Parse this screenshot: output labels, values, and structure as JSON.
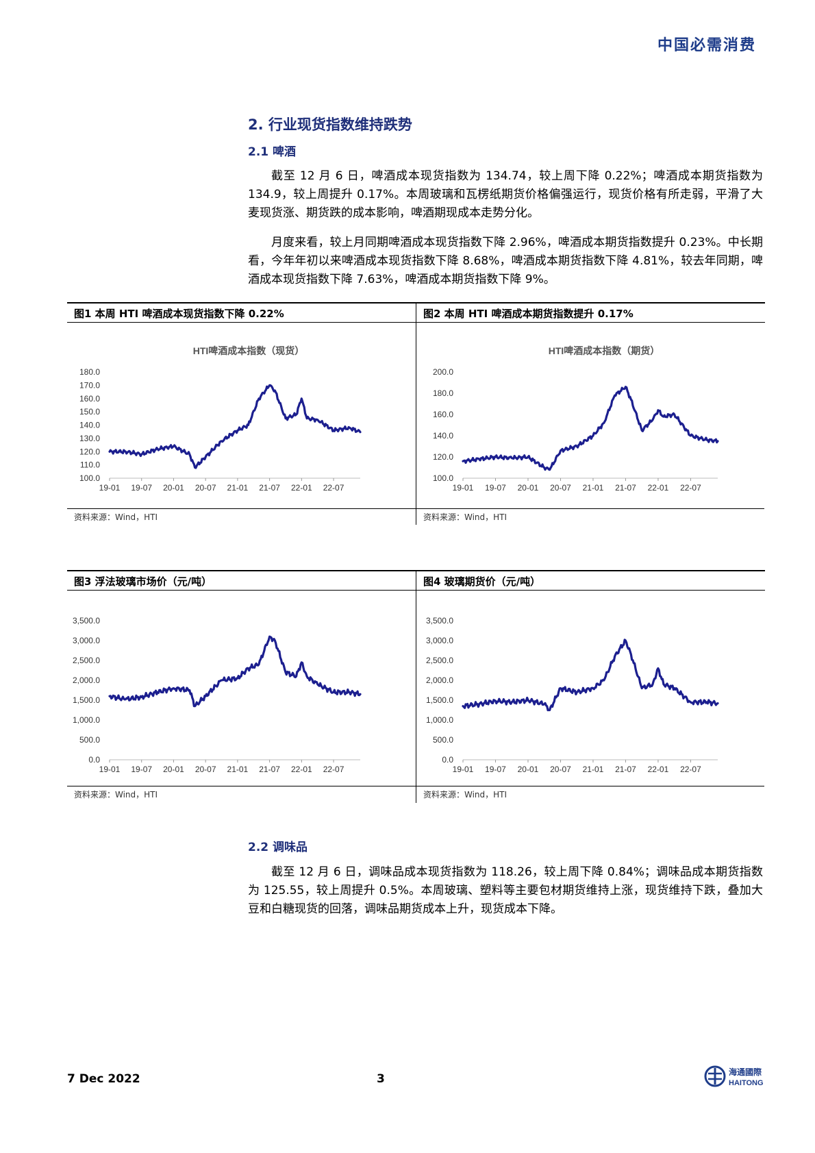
{
  "header": {
    "brand": "中国必需消费"
  },
  "section": {
    "title": "2.   行业现货指数维持跌势"
  },
  "sub1": {
    "title": "2.1   啤酒"
  },
  "para1": [
    "截至 12 月 6 日，啤酒成本现货指数为 134.74，较上周下降 0.22%；啤酒成本期货指数为 134.9，较上周提升 0.17%。本周玻璃和瓦楞纸期货价格偏强运行，现货价格有所走弱，平滑了大麦现货涨、期货跌的成本影响，啤酒期现成本走势分化。",
    "月度来看，较上月同期啤酒成本现货指数下降 2.96%，啤酒成本期货指数提升 0.23%。中长期看，今年年初以来啤酒成本现货指数下降 8.68%，啤酒成本期货指数下降 4.81%，较去年同期，啤酒成本现货指数下降 7.63%，啤酒成本期货指数下降 9%。"
  ],
  "figures": [
    {
      "caption": "图1   本周 HTI 啤酒成本现货指数下降 0.22%",
      "source": "资料来源：Wind，HTI"
    },
    {
      "caption": "图2   本周 HTI 啤酒成本期货指数提升 0.17%",
      "source": "资料来源：Wind，HTI"
    },
    {
      "caption": "图3   浮法玻璃市场价（元/吨）",
      "source": "资料来源：Wind，HTI"
    },
    {
      "caption": "图4   玻璃期货价（元/吨）",
      "source": "资料来源：Wind，HTI"
    }
  ],
  "sub2": {
    "title": "2.2   调味品"
  },
  "para2": [
    "截至 12 月 6 日，调味品成本现货指数为 118.26，较上周下降 0.84%；调味品成本期货指数为 125.55，较上周提升 0.5%。本周玻璃、塑料等主要包材期货维持上涨，现货维持下跌，叠加大豆和白糖现货的回落，调味品期货成本上升，现货成本下降。"
  ],
  "footer": {
    "date": "7 Dec 2022",
    "page": "3",
    "logo_cn": "海通國際",
    "logo_en": "HAITONG"
  },
  "colors": {
    "line": "#1c1f8f",
    "brand": "#1f3d8a"
  },
  "chart_data": [
    {
      "type": "line",
      "title": "HTI啤酒成本指数（现货）",
      "x": [
        "19-01",
        "19-04",
        "19-07",
        "19-10",
        "20-01",
        "20-04",
        "20-05",
        "20-07",
        "20-10",
        "21-01",
        "21-03",
        "21-05",
        "21-07",
        "21-08",
        "21-10",
        "21-12",
        "22-01",
        "22-02",
        "22-04",
        "22-07",
        "22-10",
        "22-12"
      ],
      "series": [
        {
          "values": [
            120,
            120,
            118,
            122,
            124,
            118,
            108,
            116,
            128,
            136,
            140,
            160,
            170,
            166,
            145,
            148,
            160,
            145,
            144,
            136,
            138,
            134.74
          ]
        }
      ],
      "xticks": [
        "19-01",
        "19-07",
        "20-01",
        "20-07",
        "21-01",
        "21-07",
        "22-01",
        "22-07"
      ],
      "yticks": [
        "100.0",
        "110.0",
        "120.0",
        "130.0",
        "140.0",
        "150.0",
        "160.0",
        "170.0",
        "180.0"
      ],
      "ylim": [
        100,
        180
      ]
    },
    {
      "type": "line",
      "title": "HTI啤酒成本指数（期货）",
      "x": [
        "19-01",
        "19-04",
        "19-07",
        "19-10",
        "20-01",
        "20-04",
        "20-05",
        "20-07",
        "20-10",
        "21-01",
        "21-03",
        "21-05",
        "21-07",
        "21-08",
        "21-10",
        "21-12",
        "22-01",
        "22-02",
        "22-04",
        "22-07",
        "22-10",
        "22-12"
      ],
      "series": [
        {
          "values": [
            116,
            118,
            120,
            119,
            120,
            110,
            108,
            126,
            130,
            140,
            152,
            178,
            186,
            174,
            145,
            155,
            164,
            158,
            160,
            140,
            136,
            134.9
          ]
        }
      ],
      "xticks": [
        "19-01",
        "19-07",
        "20-01",
        "20-07",
        "21-01",
        "21-07",
        "22-01",
        "22-07"
      ],
      "yticks": [
        "100.0",
        "120.0",
        "140.0",
        "160.0",
        "180.0",
        "200.0"
      ],
      "ylim": [
        100,
        200
      ]
    },
    {
      "type": "line",
      "title": "",
      "x": [
        "19-01",
        "19-04",
        "19-07",
        "19-10",
        "20-01",
        "20-04",
        "20-05",
        "20-07",
        "20-10",
        "21-01",
        "21-03",
        "21-05",
        "21-07",
        "21-08",
        "21-10",
        "21-12",
        "22-01",
        "22-02",
        "22-04",
        "22-07",
        "22-10",
        "22-12"
      ],
      "series": [
        {
          "values": [
            1600,
            1520,
            1580,
            1700,
            1800,
            1750,
            1350,
            1600,
            2000,
            2050,
            2300,
            2400,
            3100,
            3000,
            2200,
            2100,
            2450,
            2100,
            1900,
            1700,
            1700,
            1650
          ]
        }
      ],
      "xticks": [
        "19-01",
        "19-07",
        "20-01",
        "20-07",
        "21-01",
        "21-07",
        "22-01",
        "22-07"
      ],
      "yticks": [
        "0.0",
        "500.0",
        "1,000.0",
        "1,500.0",
        "2,000.0",
        "2,500.0",
        "3,000.0",
        "3,500.0"
      ],
      "ylim": [
        0,
        3500
      ]
    },
    {
      "type": "line",
      "title": "",
      "x": [
        "19-01",
        "19-04",
        "19-07",
        "19-10",
        "20-01",
        "20-04",
        "20-05",
        "20-07",
        "20-10",
        "21-01",
        "21-03",
        "21-05",
        "21-07",
        "21-08",
        "21-10",
        "21-12",
        "22-01",
        "22-02",
        "22-04",
        "22-07",
        "22-10",
        "22-12"
      ],
      "series": [
        {
          "values": [
            1350,
            1400,
            1480,
            1450,
            1500,
            1400,
            1250,
            1800,
            1700,
            1800,
            2000,
            2600,
            3000,
            2650,
            1800,
            1900,
            2300,
            1900,
            1800,
            1450,
            1450,
            1420
          ]
        }
      ],
      "xticks": [
        "19-01",
        "19-07",
        "20-01",
        "20-07",
        "21-01",
        "21-07",
        "22-01",
        "22-07"
      ],
      "yticks": [
        "0.0",
        "500.0",
        "1,000.0",
        "1,500.0",
        "2,000.0",
        "2,500.0",
        "3,000.0",
        "3,500.0"
      ],
      "ylim": [
        0,
        3500
      ]
    }
  ]
}
